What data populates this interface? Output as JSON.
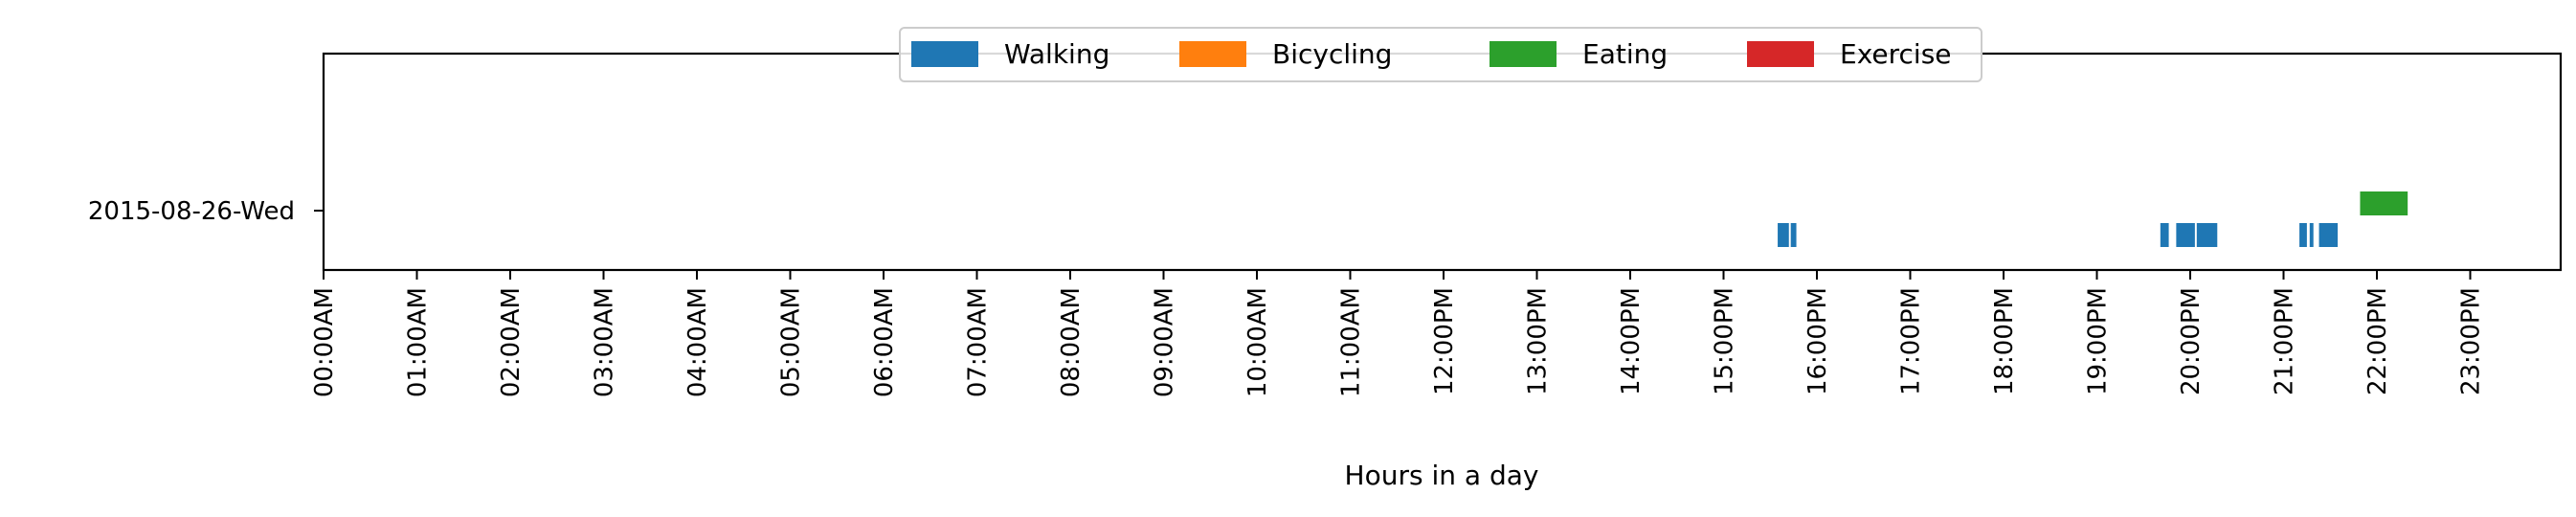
{
  "chart_data": {
    "type": "timeline",
    "xlabel": "Hours in a day",
    "xlim": [
      0,
      24
    ],
    "x_ticks": [
      "00:00AM",
      "01:00AM",
      "02:00AM",
      "03:00AM",
      "04:00AM",
      "05:00AM",
      "06:00AM",
      "07:00AM",
      "08:00AM",
      "09:00AM",
      "10:00AM",
      "11:00AM",
      "12:00PM",
      "13:00PM",
      "14:00PM",
      "15:00PM",
      "16:00PM",
      "17:00PM",
      "18:00PM",
      "19:00PM",
      "20:00PM",
      "21:00PM",
      "22:00PM",
      "23:00PM"
    ],
    "y_categories": [
      "2015-08-26-Wed"
    ],
    "legend": {
      "placement": "top-center",
      "entries": [
        {
          "name": "Walking",
          "color": "#1f77b4"
        },
        {
          "name": "Bicycling",
          "color": "#ff7f0e"
        },
        {
          "name": "Eating",
          "color": "#2ca02c"
        },
        {
          "name": "Exercise",
          "color": "#d62728"
        }
      ]
    },
    "series": [
      {
        "name": "Walking",
        "color": "#1f77b4",
        "day": "2015-08-26-Wed",
        "intervals": [
          [
            15.58,
            15.7
          ],
          [
            15.72,
            15.78
          ],
          [
            19.68,
            19.77
          ],
          [
            19.85,
            20.05
          ],
          [
            20.07,
            20.29
          ],
          [
            21.17,
            21.25
          ],
          [
            21.28,
            21.32
          ],
          [
            21.38,
            21.58
          ]
        ]
      },
      {
        "name": "Bicycling",
        "color": "#ff7f0e",
        "day": "2015-08-26-Wed",
        "intervals": []
      },
      {
        "name": "Eating",
        "color": "#2ca02c",
        "day": "2015-08-26-Wed",
        "intervals": [
          [
            21.82,
            22.33
          ]
        ]
      },
      {
        "name": "Exercise",
        "color": "#d62728",
        "day": "2015-08-26-Wed",
        "intervals": []
      }
    ]
  }
}
